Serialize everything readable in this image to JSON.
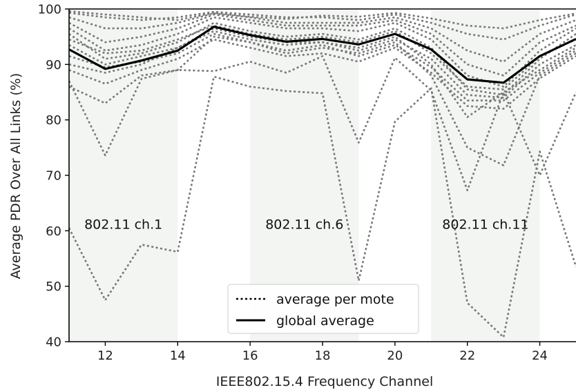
{
  "chart_data": {
    "type": "line",
    "title": "",
    "xlabel": "IEEE802.15.4 Frequency Channel",
    "ylabel": "Average PDR Over All Links (%)",
    "xlim": [
      11,
      25
    ],
    "ylim": [
      40,
      100
    ],
    "xticks": [
      12,
      14,
      16,
      18,
      20,
      22,
      24
    ],
    "yticks": [
      40,
      50,
      60,
      70,
      80,
      90,
      100
    ],
    "grid": false,
    "legend": {
      "placement": "lower-center",
      "entries": [
        {
          "label": "average per mote",
          "style": "dotted",
          "color": "#000000"
        },
        {
          "label": "global average",
          "style": "solid",
          "color": "#000000"
        }
      ]
    },
    "bands": [
      {
        "label": "802.11 ch.1",
        "x0": 11,
        "x1": 14
      },
      {
        "label": "802.11 ch.6",
        "x0": 16,
        "x1": 19
      },
      {
        "label": "802.11 ch.11",
        "x0": 21,
        "x1": 24
      }
    ],
    "x": [
      11,
      12,
      13,
      14,
      15,
      16,
      17,
      18,
      19,
      20,
      21,
      22,
      23,
      24,
      25
    ],
    "global_average": [
      92.7,
      89.2,
      90.7,
      92.5,
      96.8,
      95.3,
      94.1,
      94.6,
      93.6,
      95.5,
      92.7,
      87.3,
      86.7,
      91.5,
      94.6
    ],
    "mote_series": [
      [
        60.5,
        47.5,
        57.5,
        56.2,
        87.8,
        86.0,
        85.2,
        84.8,
        51.0,
        79.7,
        85.7,
        47.0,
        40.8,
        74.3,
        53.5
      ],
      [
        87.0,
        73.6,
        87.4,
        89.0,
        88.8,
        90.5,
        88.5,
        91.5,
        75.9,
        91.2,
        85.3,
        67.3,
        85.0,
        70.0,
        85.0
      ],
      [
        86.0,
        83.0,
        88.0,
        89.0,
        95.0,
        94.0,
        92.0,
        93.0,
        92.0,
        94.0,
        88.0,
        75.0,
        71.8,
        88.0,
        92.0
      ],
      [
        90.0,
        88.5,
        90.0,
        93.0,
        96.5,
        95.0,
        94.0,
        94.0,
        93.0,
        95.0,
        90.0,
        80.5,
        85.0,
        89.0,
        93.0
      ],
      [
        95.5,
        91.0,
        92.0,
        94.0,
        97.5,
        96.0,
        95.0,
        95.5,
        94.5,
        96.5,
        93.0,
        85.5,
        84.5,
        91.0,
        95.5
      ],
      [
        96.5,
        92.5,
        93.5,
        95.5,
        98.5,
        97.5,
        96.5,
        96.5,
        96.0,
        97.5,
        94.5,
        88.0,
        86.0,
        92.5,
        96.5
      ],
      [
        97.5,
        94.0,
        95.0,
        96.5,
        99.0,
        98.0,
        97.0,
        97.0,
        97.0,
        98.0,
        95.5,
        90.0,
        88.0,
        94.0,
        97.0
      ],
      [
        98.5,
        96.5,
        96.5,
        97.5,
        99.2,
        98.5,
        97.5,
        97.5,
        97.5,
        98.5,
        96.5,
        92.5,
        90.5,
        95.5,
        98.0
      ],
      [
        99.3,
        98.5,
        98.0,
        98.5,
        99.5,
        99.0,
        98.5,
        98.5,
        98.0,
        99.0,
        97.5,
        95.5,
        94.5,
        97.0,
        99.0
      ],
      [
        99.6,
        99.0,
        98.5,
        98.0,
        99.3,
        98.6,
        98.2,
        98.8,
        98.6,
        99.3,
        98.3,
        97.0,
        96.5,
        98.0,
        99.2
      ],
      [
        93.5,
        90.0,
        91.5,
        93.0,
        96.0,
        94.5,
        93.5,
        94.0,
        92.5,
        94.5,
        91.0,
        84.5,
        84.0,
        90.0,
        93.5
      ],
      [
        91.5,
        89.5,
        90.5,
        92.0,
        95.5,
        94.0,
        92.5,
        93.5,
        91.5,
        93.5,
        89.5,
        83.5,
        83.5,
        88.5,
        92.5
      ],
      [
        94.5,
        92.0,
        92.5,
        94.5,
        97.0,
        95.5,
        94.5,
        95.0,
        94.0,
        96.0,
        92.0,
        86.0,
        85.5,
        91.5,
        94.5
      ],
      [
        89.0,
        86.5,
        89.0,
        91.0,
        94.5,
        93.0,
        91.5,
        92.0,
        90.5,
        93.0,
        88.5,
        82.5,
        82.0,
        87.5,
        91.5
      ]
    ]
  }
}
